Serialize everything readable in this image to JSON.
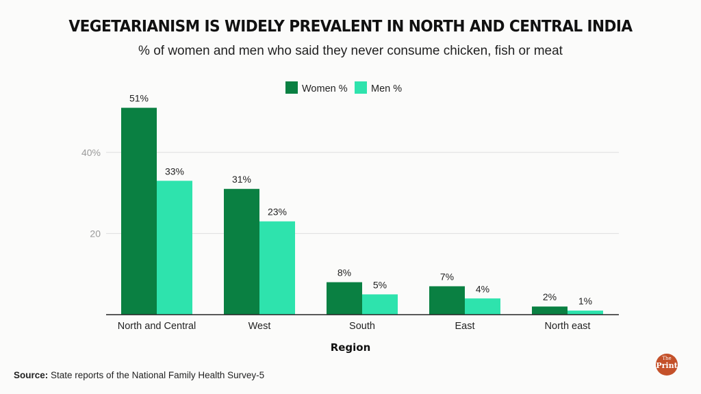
{
  "chart_data": {
    "type": "bar",
    "title": "VEGETARIANISM IS WIDELY PREVALENT IN NORTH AND CENTRAL INDIA",
    "subtitle": "% of women and men who said they never consume chicken, fish or meat",
    "xlabel": "Region",
    "ylabel": "",
    "categories": [
      "North and Central",
      "West",
      "South",
      "East",
      "North east"
    ],
    "series": [
      {
        "name": "Women %",
        "color": "#0a8042",
        "values": [
          51,
          31,
          8,
          7,
          2
        ],
        "labels": [
          "51%",
          "31%",
          "8%",
          "7%",
          "2%"
        ]
      },
      {
        "name": "Men %",
        "color": "#2ee3ad",
        "values": [
          33,
          23,
          5,
          4,
          1
        ],
        "labels": [
          "33%",
          "23%",
          "5%",
          "4%",
          "1%"
        ]
      }
    ],
    "yticks": [
      {
        "value": 20,
        "label": "20"
      },
      {
        "value": 40,
        "label": "40%"
      }
    ],
    "ylim": [
      0,
      55
    ],
    "grid": true,
    "legend": "top-center"
  },
  "source": {
    "label": "Source:",
    "text": " State reports of the National Family Health Survey-5"
  },
  "logo": {
    "the": "The",
    "print": "Print"
  }
}
